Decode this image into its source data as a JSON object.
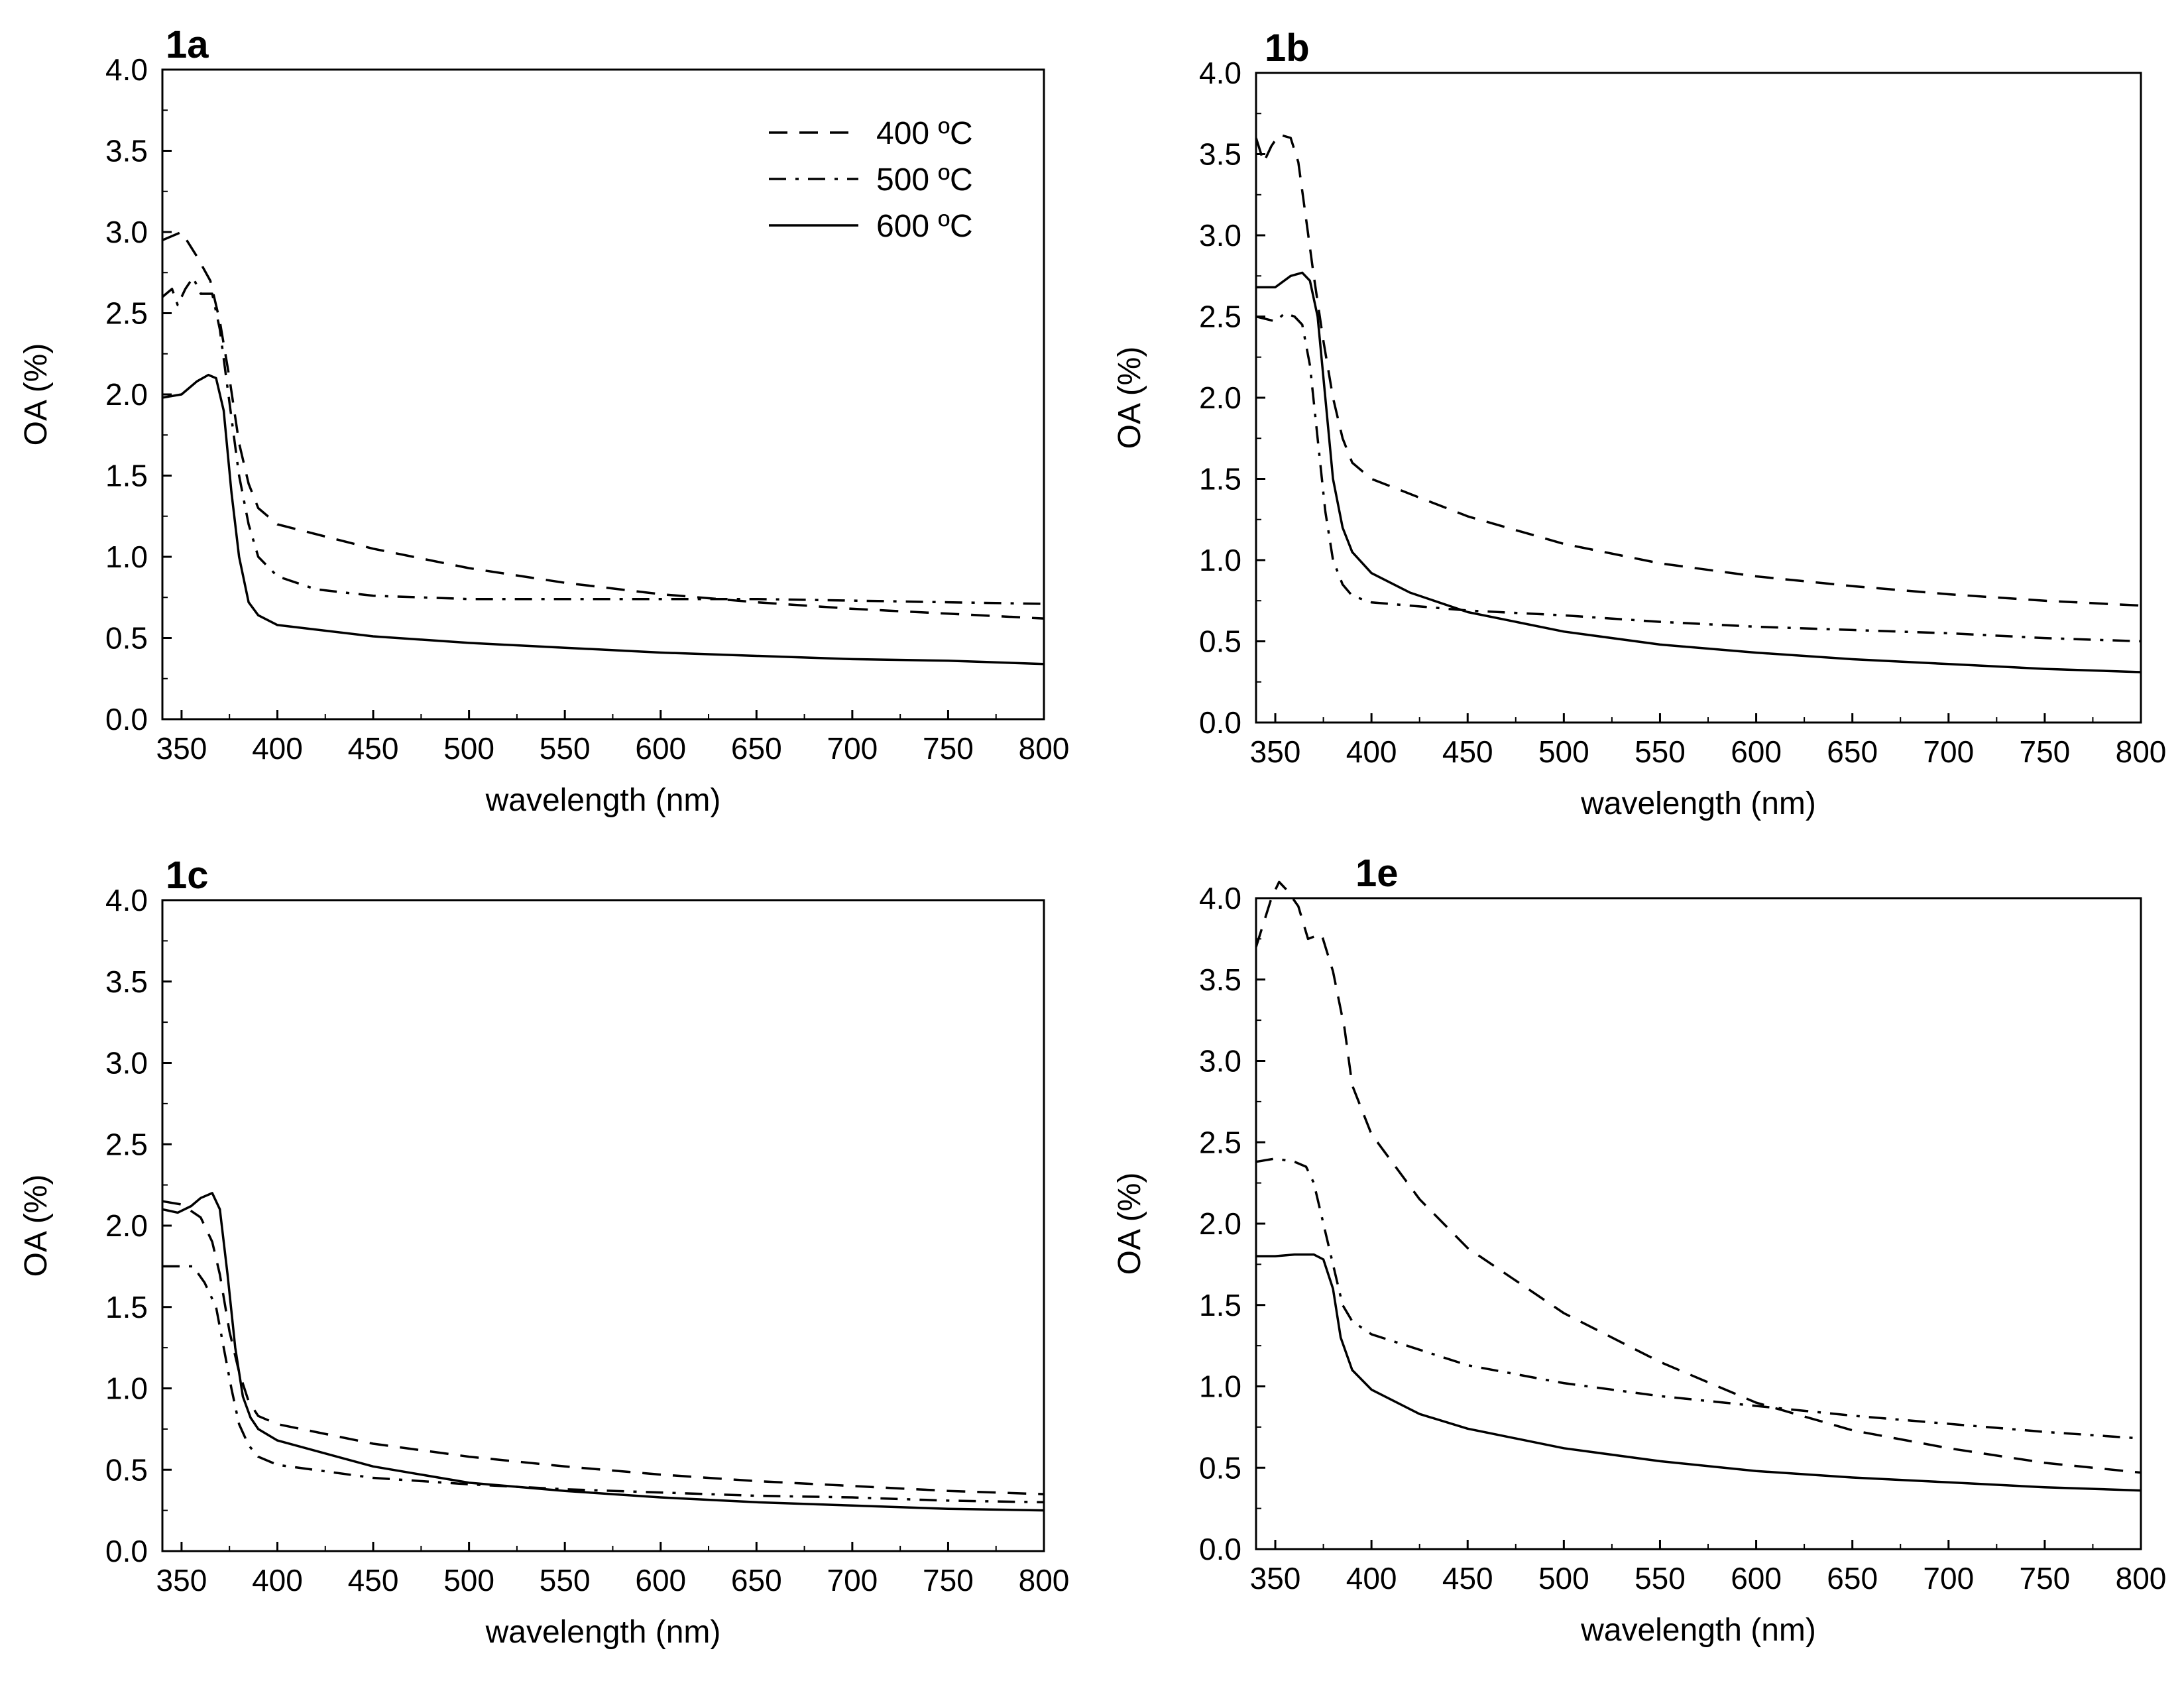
{
  "figure": {
    "legend": [
      {
        "label": "400 ºC",
        "style": "dashed"
      },
      {
        "label": "500 ºC",
        "style": "dashdot"
      },
      {
        "label": "600 ºC",
        "style": "solid"
      }
    ],
    "colors": {
      "line": "#000000",
      "background": "#ffffff"
    }
  },
  "chart_data": [
    {
      "type": "line",
      "title": "1a",
      "xlabel": "wavelength (nm)",
      "ylabel": "OA (%)",
      "xlim": [
        340,
        800
      ],
      "ylim": [
        0,
        4
      ],
      "xticks": [
        350,
        400,
        450,
        500,
        550,
        600,
        650,
        700,
        750,
        800
      ],
      "yticks": [
        "0.0",
        "0.5",
        "1.0",
        "1.5",
        "2.0",
        "2.5",
        "3.0",
        "3.5",
        "4.0"
      ],
      "legend_position": "top-right",
      "show_legend": true,
      "series": [
        {
          "name": "400 ºC",
          "style": "dashed",
          "points": [
            [
              340,
              2.95
            ],
            [
              350,
              3.0
            ],
            [
              358,
              2.85
            ],
            [
              365,
              2.7
            ],
            [
              370,
              2.45
            ],
            [
              375,
              2.1
            ],
            [
              380,
              1.7
            ],
            [
              385,
              1.45
            ],
            [
              390,
              1.3
            ],
            [
              400,
              1.2
            ],
            [
              450,
              1.05
            ],
            [
              500,
              0.93
            ],
            [
              550,
              0.84
            ],
            [
              600,
              0.77
            ],
            [
              650,
              0.72
            ],
            [
              700,
              0.68
            ],
            [
              750,
              0.65
            ],
            [
              800,
              0.62
            ]
          ]
        },
        {
          "name": "500 ºC",
          "style": "dashdot",
          "points": [
            [
              340,
              2.6
            ],
            [
              345,
              2.65
            ],
            [
              348,
              2.55
            ],
            [
              352,
              2.65
            ],
            [
              356,
              2.72
            ],
            [
              360,
              2.62
            ],
            [
              366,
              2.62
            ],
            [
              370,
              2.4
            ],
            [
              375,
              1.95
            ],
            [
              380,
              1.5
            ],
            [
              385,
              1.2
            ],
            [
              390,
              1.0
            ],
            [
              400,
              0.88
            ],
            [
              420,
              0.8
            ],
            [
              450,
              0.76
            ],
            [
              500,
              0.74
            ],
            [
              550,
              0.74
            ],
            [
              600,
              0.74
            ],
            [
              650,
              0.74
            ],
            [
              700,
              0.73
            ],
            [
              750,
              0.72
            ],
            [
              800,
              0.71
            ]
          ]
        },
        {
          "name": "600 ºC",
          "style": "solid",
          "points": [
            [
              340,
              1.98
            ],
            [
              350,
              2.0
            ],
            [
              358,
              2.08
            ],
            [
              364,
              2.12
            ],
            [
              368,
              2.1
            ],
            [
              372,
              1.9
            ],
            [
              376,
              1.4
            ],
            [
              380,
              1.0
            ],
            [
              385,
              0.72
            ],
            [
              390,
              0.64
            ],
            [
              400,
              0.58
            ],
            [
              450,
              0.51
            ],
            [
              500,
              0.47
            ],
            [
              550,
              0.44
            ],
            [
              600,
              0.41
            ],
            [
              650,
              0.39
            ],
            [
              700,
              0.37
            ],
            [
              750,
              0.36
            ],
            [
              800,
              0.34
            ]
          ]
        }
      ]
    },
    {
      "type": "line",
      "title": "1b",
      "xlabel": "wavelength (nm)",
      "ylabel": "OA (%)",
      "xlim": [
        340,
        800
      ],
      "ylim": [
        0,
        4
      ],
      "xticks": [
        350,
        400,
        450,
        500,
        550,
        600,
        650,
        700,
        750,
        800
      ],
      "yticks": [
        "0.0",
        "0.5",
        "1.0",
        "1.5",
        "2.0",
        "2.5",
        "3.0",
        "3.5",
        "4.0"
      ],
      "show_legend": false,
      "series": [
        {
          "name": "400 ºC",
          "style": "dashed",
          "points": [
            [
              340,
              3.6
            ],
            [
              344,
              3.45
            ],
            [
              348,
              3.55
            ],
            [
              352,
              3.62
            ],
            [
              358,
              3.6
            ],
            [
              362,
              3.45
            ],
            [
              366,
              3.1
            ],
            [
              370,
              2.75
            ],
            [
              375,
              2.35
            ],
            [
              380,
              2.0
            ],
            [
              385,
              1.75
            ],
            [
              390,
              1.6
            ],
            [
              400,
              1.5
            ],
            [
              450,
              1.27
            ],
            [
              500,
              1.1
            ],
            [
              550,
              0.98
            ],
            [
              600,
              0.9
            ],
            [
              650,
              0.84
            ],
            [
              700,
              0.79
            ],
            [
              750,
              0.75
            ],
            [
              800,
              0.72
            ]
          ]
        },
        {
          "name": "500 ºC",
          "style": "dashdot",
          "points": [
            [
              340,
              2.5
            ],
            [
              350,
              2.47
            ],
            [
              355,
              2.52
            ],
            [
              360,
              2.5
            ],
            [
              364,
              2.45
            ],
            [
              368,
              2.2
            ],
            [
              372,
              1.75
            ],
            [
              376,
              1.3
            ],
            [
              380,
              1.0
            ],
            [
              385,
              0.85
            ],
            [
              390,
              0.78
            ],
            [
              400,
              0.74
            ],
            [
              450,
              0.69
            ],
            [
              500,
              0.66
            ],
            [
              550,
              0.62
            ],
            [
              600,
              0.59
            ],
            [
              650,
              0.57
            ],
            [
              700,
              0.55
            ],
            [
              750,
              0.52
            ],
            [
              800,
              0.5
            ]
          ]
        },
        {
          "name": "600 ºC",
          "style": "solid",
          "points": [
            [
              340,
              2.68
            ],
            [
              350,
              2.68
            ],
            [
              358,
              2.75
            ],
            [
              364,
              2.77
            ],
            [
              368,
              2.72
            ],
            [
              372,
              2.5
            ],
            [
              376,
              2.0
            ],
            [
              380,
              1.5
            ],
            [
              385,
              1.2
            ],
            [
              390,
              1.05
            ],
            [
              400,
              0.92
            ],
            [
              420,
              0.8
            ],
            [
              450,
              0.68
            ],
            [
              500,
              0.56
            ],
            [
              550,
              0.48
            ],
            [
              600,
              0.43
            ],
            [
              650,
              0.39
            ],
            [
              700,
              0.36
            ],
            [
              750,
              0.33
            ],
            [
              800,
              0.31
            ]
          ]
        }
      ]
    },
    {
      "type": "line",
      "title": "1c",
      "xlabel": "wavelength (nm)",
      "ylabel": "OA (%)",
      "xlim": [
        340,
        800
      ],
      "ylim": [
        0,
        4
      ],
      "xticks": [
        350,
        400,
        450,
        500,
        550,
        600,
        650,
        700,
        750,
        800
      ],
      "yticks": [
        "0.0",
        "0.5",
        "1.0",
        "1.5",
        "2.0",
        "2.5",
        "3.0",
        "3.5",
        "4.0"
      ],
      "show_legend": false,
      "series": [
        {
          "name": "400 ºC",
          "style": "dashed",
          "points": [
            [
              340,
              2.15
            ],
            [
              350,
              2.13
            ],
            [
              360,
              2.05
            ],
            [
              366,
              1.9
            ],
            [
              370,
              1.7
            ],
            [
              375,
              1.35
            ],
            [
              380,
              1.1
            ],
            [
              385,
              0.92
            ],
            [
              390,
              0.83
            ],
            [
              400,
              0.78
            ],
            [
              450,
              0.66
            ],
            [
              500,
              0.58
            ],
            [
              550,
              0.52
            ],
            [
              600,
              0.47
            ],
            [
              650,
              0.43
            ],
            [
              700,
              0.4
            ],
            [
              750,
              0.37
            ],
            [
              800,
              0.35
            ]
          ]
        },
        {
          "name": "500 ºC",
          "style": "dashdot",
          "points": [
            [
              340,
              1.75
            ],
            [
              356,
              1.75
            ],
            [
              362,
              1.65
            ],
            [
              368,
              1.5
            ],
            [
              372,
              1.25
            ],
            [
              376,
              1.0
            ],
            [
              380,
              0.78
            ],
            [
              385,
              0.65
            ],
            [
              390,
              0.58
            ],
            [
              400,
              0.53
            ],
            [
              450,
              0.45
            ],
            [
              500,
              0.41
            ],
            [
              550,
              0.38
            ],
            [
              600,
              0.36
            ],
            [
              650,
              0.34
            ],
            [
              700,
              0.33
            ],
            [
              750,
              0.31
            ],
            [
              800,
              0.3
            ]
          ]
        },
        {
          "name": "600 ºC",
          "style": "solid",
          "points": [
            [
              340,
              2.1
            ],
            [
              348,
              2.08
            ],
            [
              355,
              2.12
            ],
            [
              360,
              2.17
            ],
            [
              366,
              2.2
            ],
            [
              370,
              2.1
            ],
            [
              374,
              1.7
            ],
            [
              378,
              1.25
            ],
            [
              382,
              0.95
            ],
            [
              386,
              0.82
            ],
            [
              390,
              0.75
            ],
            [
              400,
              0.68
            ],
            [
              450,
              0.52
            ],
            [
              500,
              0.42
            ],
            [
              550,
              0.37
            ],
            [
              600,
              0.33
            ],
            [
              650,
              0.3
            ],
            [
              700,
              0.28
            ],
            [
              750,
              0.26
            ],
            [
              800,
              0.25
            ]
          ]
        }
      ]
    },
    {
      "type": "line",
      "title": "1e",
      "xlabel": "wavelength (nm)",
      "ylabel": "OA (%)",
      "xlim": [
        340,
        800
      ],
      "ylim": [
        0,
        4
      ],
      "xticks": [
        350,
        400,
        450,
        500,
        550,
        600,
        650,
        700,
        750,
        800
      ],
      "yticks": [
        "0.0",
        "0.5",
        "1.0",
        "1.5",
        "2.0",
        "2.5",
        "3.0",
        "3.5",
        "4.0"
      ],
      "show_legend": false,
      "series": [
        {
          "name": "400 ºC",
          "style": "dashed",
          "points": [
            [
              340,
              3.7
            ],
            [
              344,
              3.85
            ],
            [
              348,
              4.0
            ],
            [
              352,
              4.1
            ],
            [
              356,
              4.05
            ],
            [
              362,
              3.95
            ],
            [
              367,
              3.75
            ],
            [
              374,
              3.78
            ],
            [
              380,
              3.55
            ],
            [
              386,
              3.2
            ],
            [
              390,
              2.85
            ],
            [
              400,
              2.55
            ],
            [
              425,
              2.15
            ],
            [
              450,
              1.85
            ],
            [
              500,
              1.45
            ],
            [
              550,
              1.15
            ],
            [
              600,
              0.9
            ],
            [
              650,
              0.73
            ],
            [
              700,
              0.62
            ],
            [
              750,
              0.53
            ],
            [
              800,
              0.47
            ]
          ]
        },
        {
          "name": "500 ºC",
          "style": "dashdot",
          "points": [
            [
              340,
              2.38
            ],
            [
              350,
              2.4
            ],
            [
              360,
              2.38
            ],
            [
              366,
              2.35
            ],
            [
              370,
              2.25
            ],
            [
              375,
              2.0
            ],
            [
              380,
              1.75
            ],
            [
              385,
              1.5
            ],
            [
              390,
              1.4
            ],
            [
              400,
              1.32
            ],
            [
              450,
              1.13
            ],
            [
              500,
              1.02
            ],
            [
              550,
              0.94
            ],
            [
              600,
              0.88
            ],
            [
              650,
              0.82
            ],
            [
              700,
              0.77
            ],
            [
              750,
              0.72
            ],
            [
              800,
              0.68
            ]
          ]
        },
        {
          "name": "600 ºC",
          "style": "solid",
          "points": [
            [
              340,
              1.8
            ],
            [
              350,
              1.8
            ],
            [
              360,
              1.81
            ],
            [
              370,
              1.81
            ],
            [
              375,
              1.78
            ],
            [
              380,
              1.6
            ],
            [
              384,
              1.3
            ],
            [
              390,
              1.1
            ],
            [
              400,
              0.98
            ],
            [
              425,
              0.83
            ],
            [
              450,
              0.74
            ],
            [
              500,
              0.62
            ],
            [
              550,
              0.54
            ],
            [
              600,
              0.48
            ],
            [
              650,
              0.44
            ],
            [
              700,
              0.41
            ],
            [
              750,
              0.38
            ],
            [
              800,
              0.36
            ]
          ]
        }
      ]
    }
  ]
}
